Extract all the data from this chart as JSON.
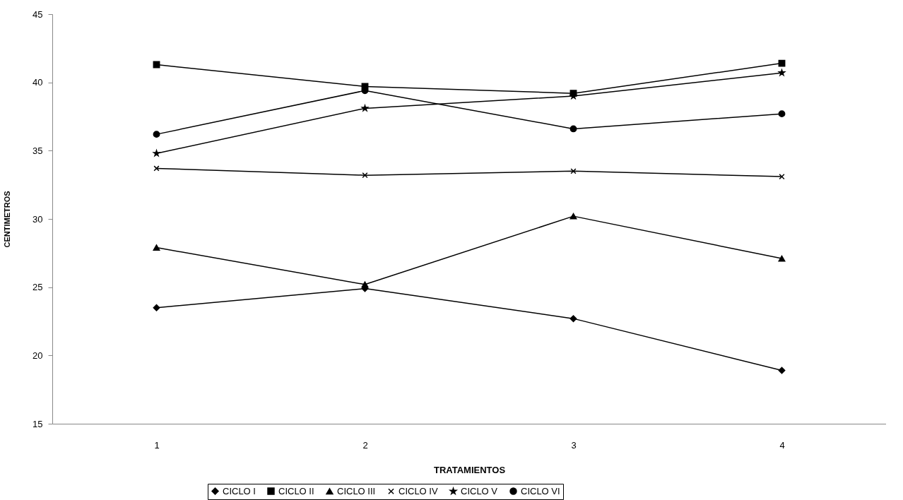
{
  "chart_data": {
    "type": "line",
    "xlabel": "TRATAMIENTOS",
    "ylabel": "CENTIMETROS",
    "categories": [
      "1",
      "2",
      "3",
      "4"
    ],
    "ylim": [
      15,
      45
    ],
    "yticks": [
      15,
      20,
      25,
      30,
      35,
      40,
      45
    ],
    "grid": false,
    "legend": "bottom",
    "series": [
      {
        "name": "CICLO I",
        "color": "#000000",
        "marker": "diamond",
        "values": [
          23.5,
          24.9,
          22.7,
          18.9
        ]
      },
      {
        "name": "CICLO II",
        "color": "#000000",
        "marker": "square",
        "values": [
          41.3,
          39.7,
          39.2,
          41.4
        ]
      },
      {
        "name": "CICLO III",
        "color": "#000000",
        "marker": "triangle",
        "values": [
          27.9,
          25.2,
          30.2,
          27.1
        ]
      },
      {
        "name": "CICLO IV",
        "color": "#000000",
        "marker": "cross",
        "values": [
          33.7,
          33.2,
          33.5,
          33.1
        ]
      },
      {
        "name": "CICLO V",
        "color": "#000000",
        "marker": "star",
        "values": [
          34.8,
          38.1,
          39.0,
          40.7
        ]
      },
      {
        "name": "CICLO VI",
        "color": "#000000",
        "marker": "circle",
        "values": [
          36.2,
          39.4,
          36.6,
          37.7
        ]
      }
    ]
  }
}
